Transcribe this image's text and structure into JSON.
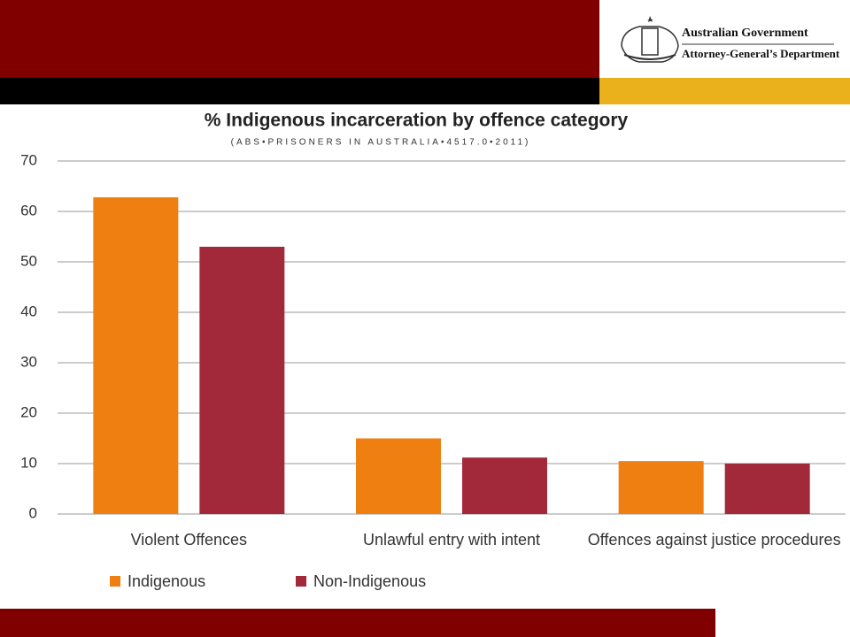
{
  "header": {
    "line1": "Australian Government",
    "line2": "Attorney-General’s Department"
  },
  "chart_data": {
    "type": "bar",
    "title": "% Indigenous incarceration by offence category",
    "subtitle": "(ABS•PRISONERS IN AUSTRALIA•4517.0•2011)",
    "categories": [
      "Violent Offences",
      "Unlawful entry with intent",
      "Offences against justice procedures"
    ],
    "series": [
      {
        "name": "Indigenous",
        "color": "#ee7f10",
        "values": [
          62.8,
          15,
          10.5
        ]
      },
      {
        "name": "Non-Indigenous",
        "color": "#a2293a",
        "values": [
          53,
          11.2,
          10
        ]
      }
    ],
    "ylim": [
      0,
      70
    ],
    "yticks": [
      0,
      10,
      20,
      30,
      40,
      50,
      60,
      70
    ],
    "grid": true,
    "legend": "bottom-left"
  }
}
